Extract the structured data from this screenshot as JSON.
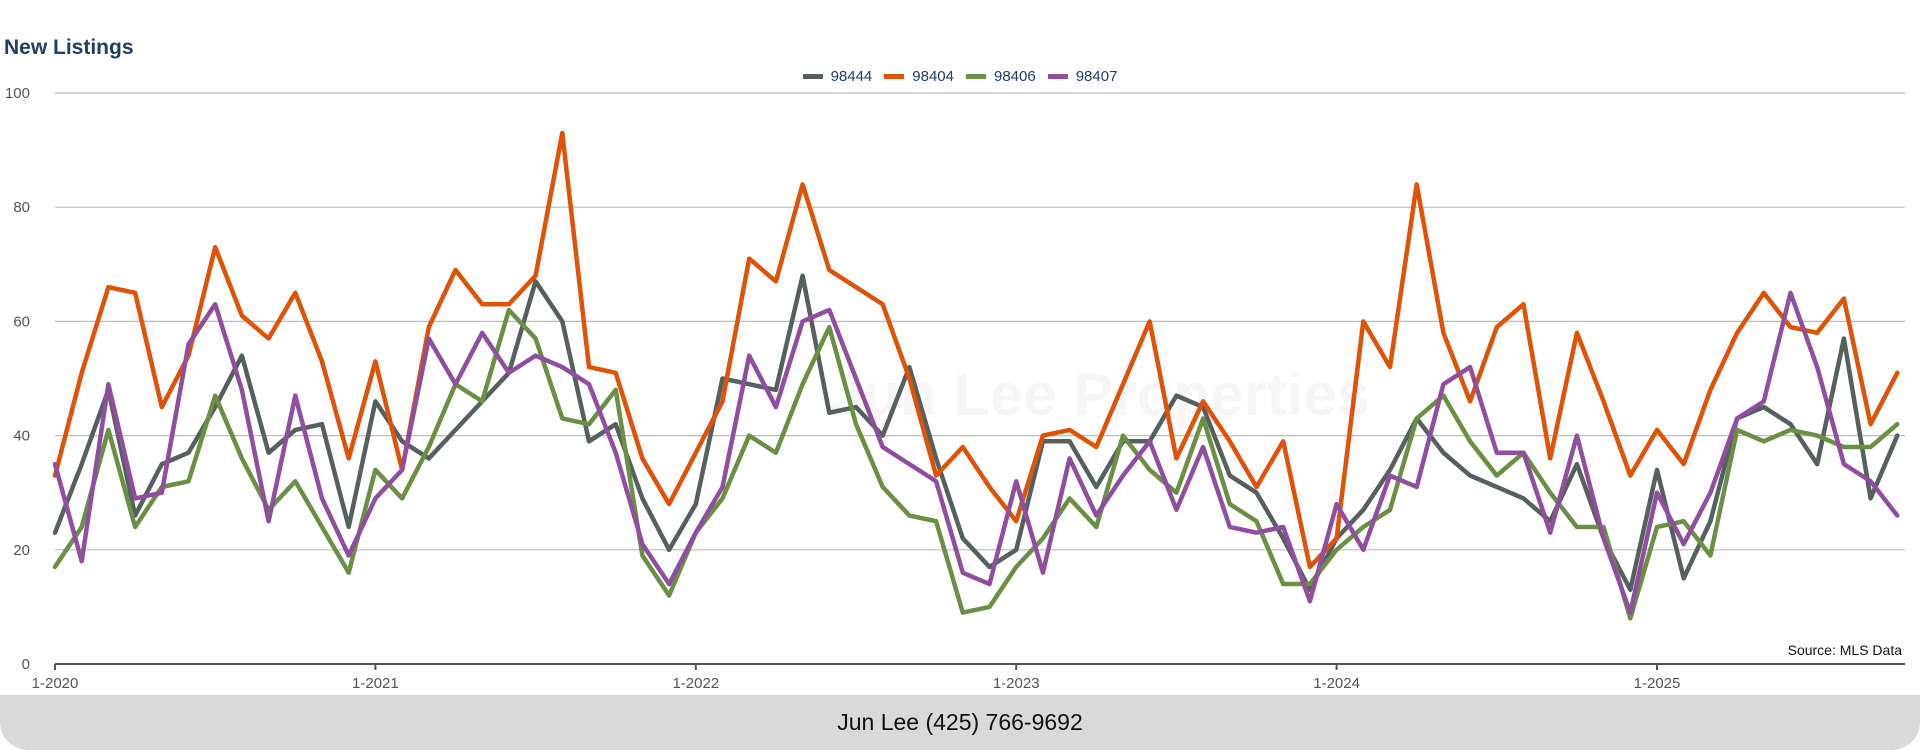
{
  "chart_data": {
    "type": "line",
    "title": "New Listings",
    "xlabel": "",
    "ylabel": "",
    "ylim": [
      0,
      100
    ],
    "yticks": [
      0,
      20,
      40,
      60,
      80,
      100
    ],
    "xtick_labels": [
      "1-2020",
      "1-2021",
      "1-2022",
      "1-2023",
      "1-2024",
      "1-2025"
    ],
    "x_start": "1-2020",
    "months": 70,
    "legend_position": "top-center",
    "grid": true,
    "source": "Source: MLS Data",
    "watermark": "Jun Lee Properties",
    "series": [
      {
        "name": "98444",
        "color": "#56605f",
        "values": [
          23,
          35,
          48,
          26,
          35,
          37,
          45,
          54,
          37,
          41,
          42,
          24,
          46,
          39,
          36,
          41,
          46,
          51,
          67,
          60,
          39,
          42,
          29,
          20,
          28,
          50,
          49,
          48,
          68,
          44,
          45,
          40,
          52,
          36,
          22,
          17,
          20,
          39,
          39,
          31,
          39,
          39,
          47,
          45,
          33,
          30,
          22,
          13,
          22,
          27,
          34,
          43,
          37,
          33,
          31,
          29,
          25,
          35,
          22,
          13,
          34,
          15,
          25,
          43,
          45,
          42,
          35,
          57,
          29,
          40
        ]
      },
      {
        "name": "98404",
        "color": "#e05206",
        "values": [
          33,
          51,
          66,
          65,
          45,
          54,
          73,
          61,
          57,
          65,
          53,
          36,
          53,
          34,
          59,
          69,
          63,
          63,
          68,
          93,
          52,
          51,
          36,
          28,
          37,
          46,
          71,
          67,
          84,
          69,
          66,
          63,
          50,
          33,
          38,
          31,
          25,
          40,
          41,
          38,
          49,
          60,
          36,
          46,
          39,
          31,
          39,
          17,
          22,
          60,
          52,
          84,
          58,
          46,
          59,
          63,
          36,
          58,
          46,
          33,
          41,
          35,
          48,
          58,
          65,
          59,
          58,
          64,
          42,
          51
        ]
      },
      {
        "name": "98406",
        "color": "#6a8f45",
        "values": [
          17,
          24,
          41,
          24,
          31,
          32,
          47,
          36,
          27,
          32,
          24,
          16,
          34,
          29,
          38,
          49,
          46,
          62,
          57,
          43,
          42,
          48,
          19,
          12,
          23,
          29,
          40,
          37,
          49,
          59,
          42,
          31,
          26,
          25,
          9,
          10,
          17,
          22,
          29,
          24,
          40,
          34,
          30,
          43,
          28,
          25,
          14,
          14,
          20,
          24,
          27,
          43,
          47,
          39,
          33,
          37,
          30,
          24,
          24,
          8,
          24,
          25,
          19,
          41,
          39,
          41,
          40,
          38,
          38,
          42
        ]
      },
      {
        "name": "98407",
        "color": "#8e4f9e",
        "values": [
          35,
          18,
          49,
          29,
          30,
          56,
          63,
          48,
          25,
          47,
          29,
          19,
          29,
          34,
          57,
          49,
          58,
          51,
          54,
          52,
          49,
          37,
          21,
          14,
          23,
          31,
          54,
          45,
          60,
          62,
          50,
          38,
          35,
          32,
          16,
          14,
          32,
          16,
          36,
          26,
          33,
          39,
          27,
          38,
          24,
          23,
          24,
          11,
          28,
          20,
          33,
          31,
          49,
          52,
          37,
          37,
          23,
          40,
          22,
          9,
          30,
          21,
          30,
          43,
          46,
          65,
          52,
          35,
          32,
          26
        ]
      }
    ]
  },
  "footer": {
    "contact": "Jun Lee (425) 766-9692"
  }
}
